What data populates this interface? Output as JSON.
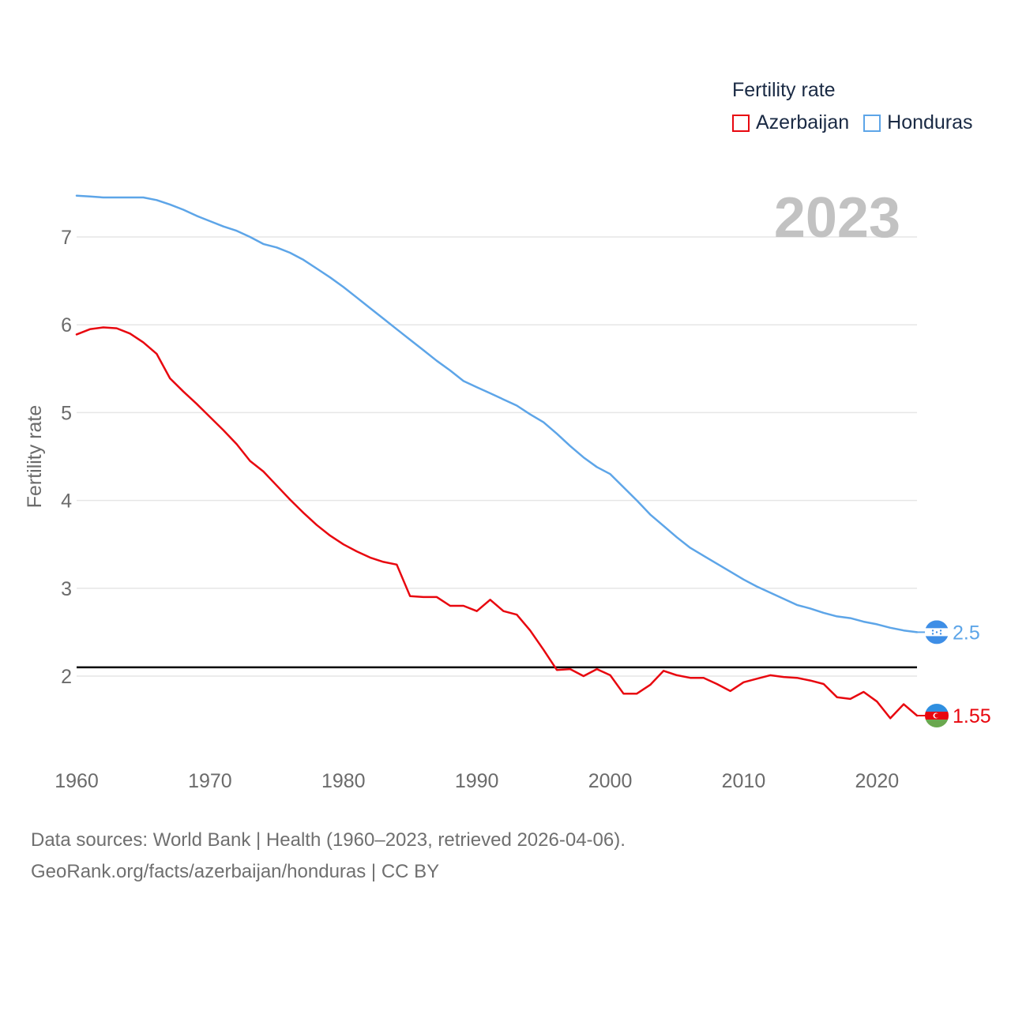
{
  "legend": {
    "title": "Fertility rate",
    "items": [
      {
        "label": "Azerbaijan",
        "color": "#e8070f"
      },
      {
        "label": "Honduras",
        "color": "#5da5e8"
      }
    ]
  },
  "source": {
    "line1": "Data sources: World Bank | Health (1960–2023, retrieved 2026-04-06).",
    "line2": "GeoRank.org/facts/azerbaijan/honduras | CC BY"
  },
  "chart_data": {
    "type": "line",
    "title": "Fertility rate",
    "year_label": "2023",
    "xlabel": "",
    "ylabel": "Fertility rate",
    "xlim": [
      1960,
      2023
    ],
    "ylim": [
      1,
      7.5
    ],
    "x_ticks": [
      1960,
      1970,
      1980,
      1990,
      2000,
      2010,
      2020
    ],
    "y_ticks": [
      2,
      3,
      4,
      5,
      6,
      7
    ],
    "grid": true,
    "legend_position": "top-right",
    "reference_line": {
      "y": 2.1,
      "color": "#000000"
    },
    "x": [
      1960,
      1961,
      1962,
      1963,
      1964,
      1965,
      1966,
      1967,
      1968,
      1969,
      1970,
      1971,
      1972,
      1973,
      1974,
      1975,
      1976,
      1977,
      1978,
      1979,
      1980,
      1981,
      1982,
      1983,
      1984,
      1985,
      1986,
      1987,
      1988,
      1989,
      1990,
      1991,
      1992,
      1993,
      1994,
      1995,
      1996,
      1997,
      1998,
      1999,
      2000,
      2001,
      2002,
      2003,
      2004,
      2005,
      2006,
      2007,
      2008,
      2009,
      2010,
      2011,
      2012,
      2013,
      2014,
      2015,
      2016,
      2017,
      2018,
      2019,
      2020,
      2021,
      2022,
      2023
    ],
    "series": [
      {
        "name": "Azerbaijan",
        "color": "#e8070f",
        "end_label": "1.55",
        "values": [
          5.89,
          5.95,
          5.97,
          5.96,
          5.9,
          5.8,
          5.67,
          5.39,
          5.24,
          5.1,
          4.95,
          4.8,
          4.64,
          4.45,
          4.33,
          4.17,
          4.01,
          3.86,
          3.72,
          3.6,
          3.5,
          3.42,
          3.35,
          3.3,
          3.27,
          2.91,
          2.9,
          2.9,
          2.8,
          2.8,
          2.74,
          2.87,
          2.74,
          2.7,
          2.52,
          2.3,
          2.07,
          2.08,
          2.0,
          2.08,
          2.01,
          1.8,
          1.8,
          1.9,
          2.06,
          2.01,
          1.98,
          1.98,
          1.91,
          1.83,
          1.93,
          1.97,
          2.01,
          1.99,
          1.98,
          1.95,
          1.91,
          1.76,
          1.74,
          1.82,
          1.71,
          1.52,
          1.68,
          1.55
        ]
      },
      {
        "name": "Honduras",
        "color": "#5da5e8",
        "end_label": "2.5",
        "values": [
          7.47,
          7.46,
          7.45,
          7.45,
          7.45,
          7.45,
          7.42,
          7.37,
          7.31,
          7.24,
          7.18,
          7.12,
          7.07,
          7.0,
          6.92,
          6.88,
          6.82,
          6.74,
          6.64,
          6.54,
          6.43,
          6.31,
          6.19,
          6.07,
          5.95,
          5.83,
          5.71,
          5.59,
          5.48,
          5.36,
          5.29,
          5.22,
          5.15,
          5.08,
          4.98,
          4.89,
          4.76,
          4.62,
          4.49,
          4.38,
          4.3,
          4.15,
          4.0,
          3.84,
          3.71,
          3.58,
          3.46,
          3.37,
          3.28,
          3.19,
          3.1,
          3.02,
          2.95,
          2.88,
          2.81,
          2.77,
          2.72,
          2.68,
          2.66,
          2.62,
          2.59,
          2.55,
          2.52,
          2.5
        ]
      }
    ]
  }
}
